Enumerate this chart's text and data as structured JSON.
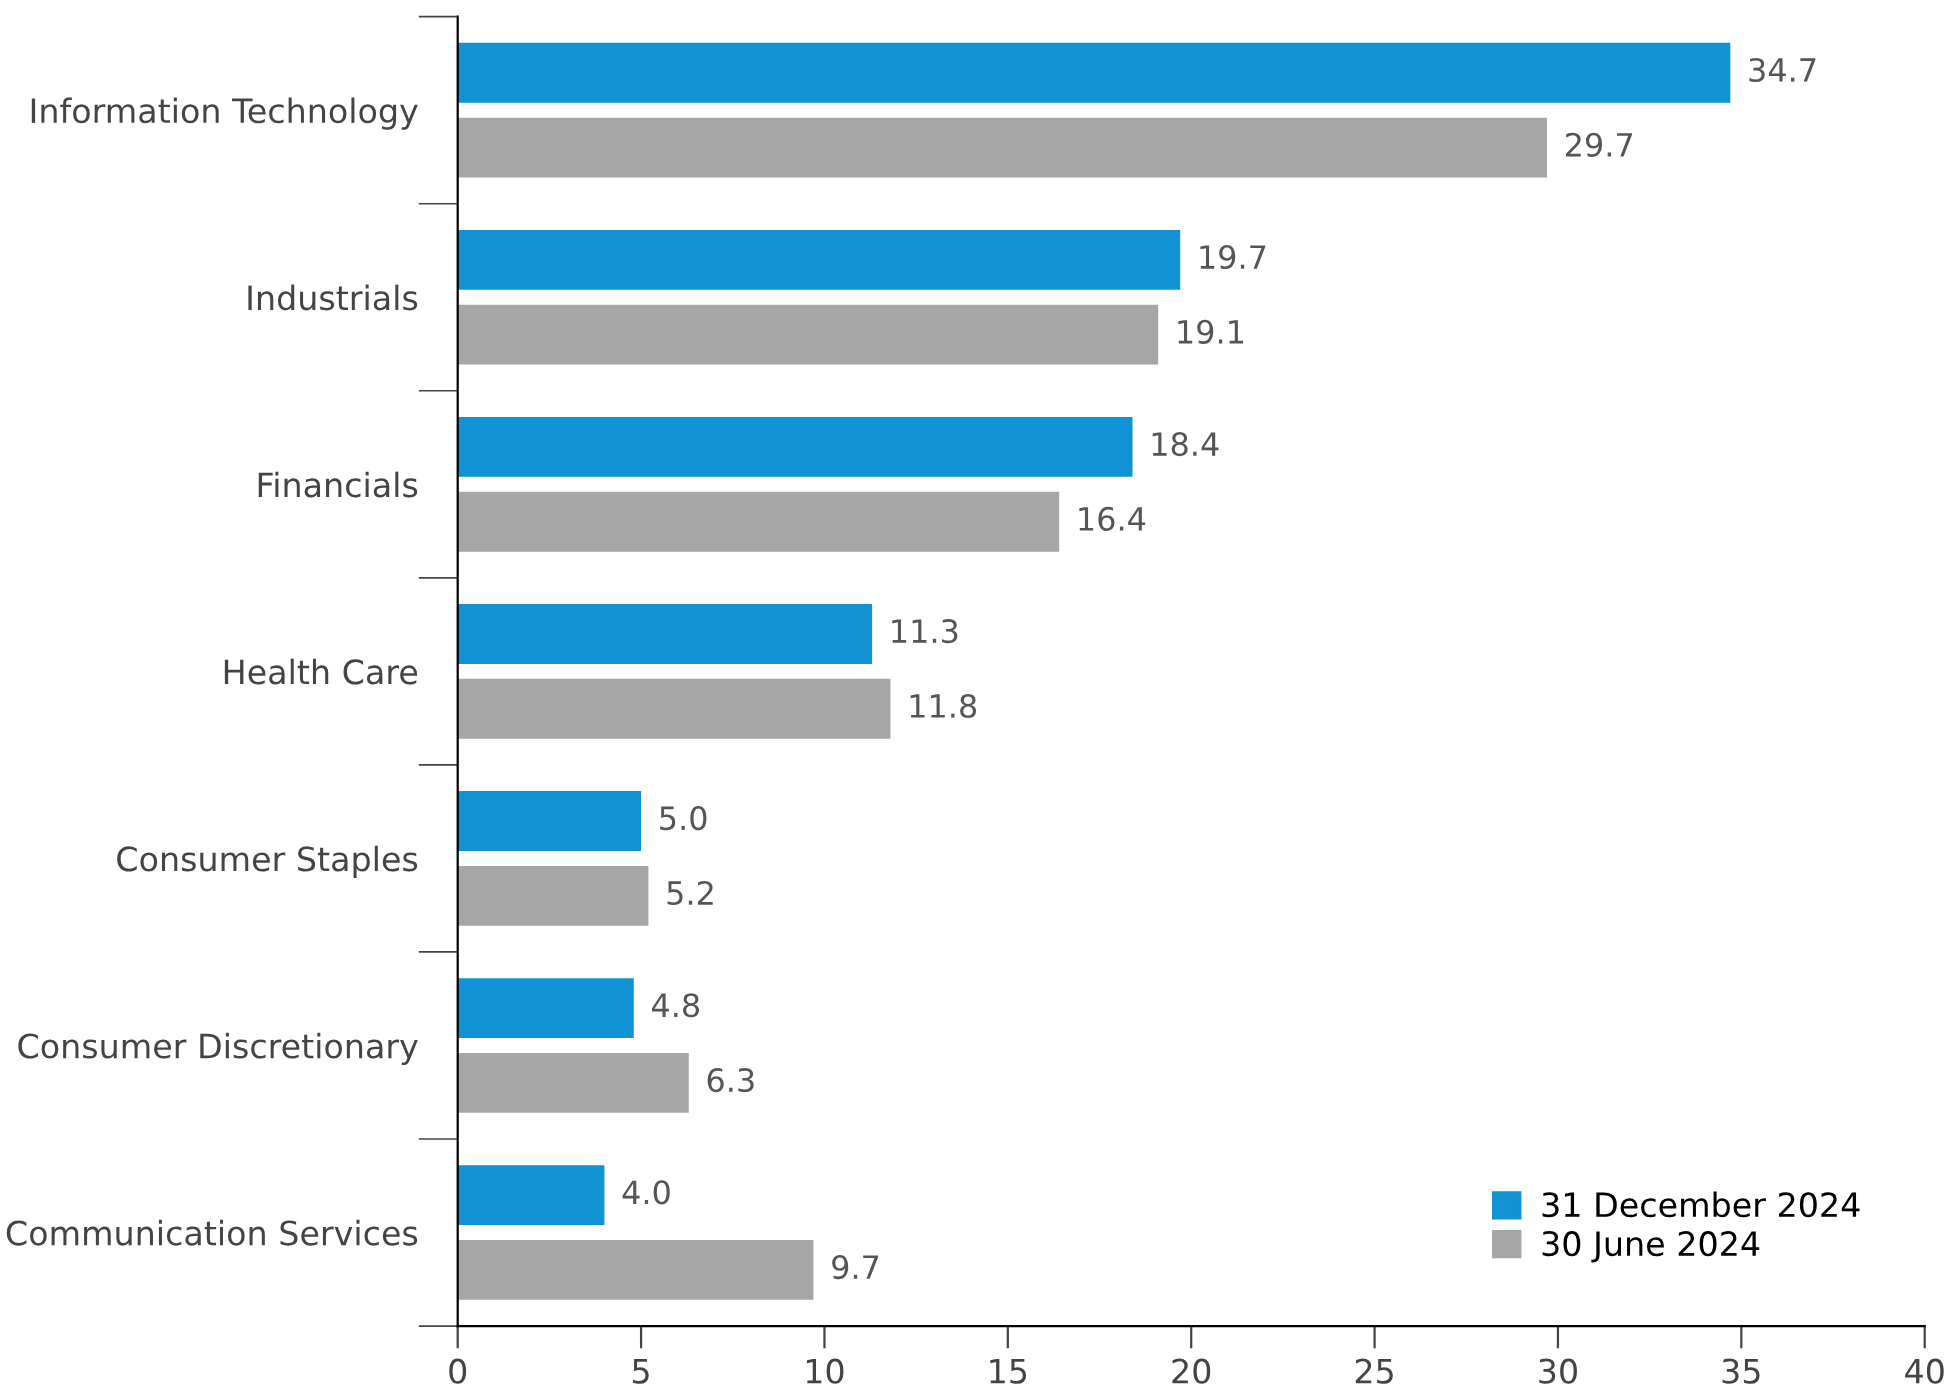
{
  "chart_data": {
    "type": "bar",
    "orientation": "horizontal",
    "categories": [
      "Information Technology",
      "Industrials",
      "Financials",
      "Health Care",
      "Consumer Staples",
      "Consumer Discretionary",
      "Communication Services"
    ],
    "series": [
      {
        "name": "31 December 2024",
        "color": "#1192d4",
        "values": [
          34.7,
          19.7,
          18.4,
          11.3,
          5.0,
          4.8,
          4.0
        ],
        "value_labels": [
          "34.7",
          "19.7",
          "18.4",
          "11.3",
          "5.0",
          "4.8",
          "4.0"
        ]
      },
      {
        "name": "30 June 2024",
        "color": "#a6a6a6",
        "values": [
          29.7,
          19.1,
          16.4,
          11.8,
          5.2,
          6.3,
          9.7
        ],
        "value_labels": [
          "29.7",
          "19.1",
          "16.4",
          "11.8",
          "5.2",
          "6.3",
          "9.7"
        ]
      }
    ],
    "xlim": [
      0,
      40
    ],
    "xticks": [
      0,
      5,
      10,
      15,
      20,
      25,
      30,
      35,
      40
    ],
    "legend": "bottom right",
    "grid": false
  }
}
